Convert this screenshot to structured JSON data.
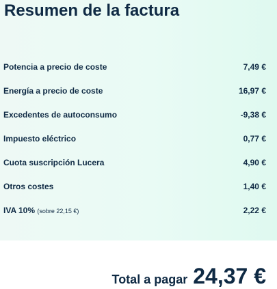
{
  "summary": {
    "title": "Resumen de la factura",
    "items": [
      {
        "label": "Potencia a precio de coste",
        "value": "7,49 €"
      },
      {
        "label": "Energía a precio de coste",
        "value": "16,97 €"
      },
      {
        "label": "Excedentes de autoconsumo",
        "value": "-9,38 €"
      },
      {
        "label": "Impuesto eléctrico",
        "value": "0,77 €"
      },
      {
        "label": "Cuota suscripción Lucera",
        "value": "4,90 €"
      },
      {
        "label": "Otros costes",
        "value": "1,40 €"
      },
      {
        "label": "IVA 10%",
        "note": "(sobre 22,15 €)",
        "value": "2,22 €"
      }
    ],
    "background_color": "#e9fbf5",
    "text_color": "#0f2a44"
  },
  "total": {
    "label": "Total a pagar",
    "value": "24,37 €"
  }
}
